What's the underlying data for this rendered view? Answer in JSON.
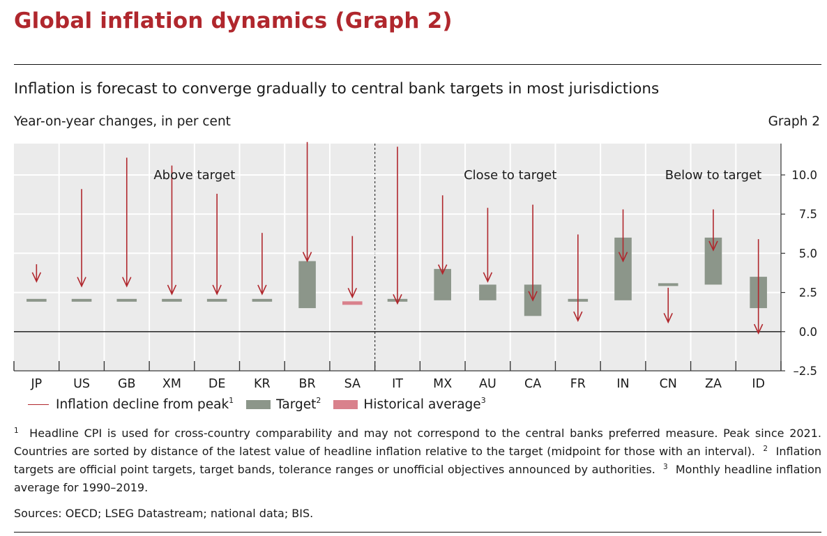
{
  "header": {
    "title": "Global inflation dynamics (Graph 2)"
  },
  "figure": {
    "subtitle": "Inflation is forecast to converge gradually to central bank targets in most jurisdictions",
    "units": "Year-on-year changes, in per cent",
    "graph_label": "Graph 2"
  },
  "legend": {
    "decline_label": "Inflation decline from peak",
    "decline_sup": "1",
    "target_label": "Target",
    "target_sup": "2",
    "historical_label": "Historical average",
    "historical_sup": "3"
  },
  "footnotes": {
    "n1": "1",
    "t1": "Headline CPI is used for cross-country comparability and may not correspond to the central banks preferred measure. Peak since 2021. Countries are sorted by distance of the latest value of headline inflation relative to the target (midpoint for those with an interval).",
    "n2": "2",
    "t2": "Inflation targets are official point targets, target bands, tolerance ranges or unofficial objectives announced by authorities.",
    "n3": "3",
    "t3": "Monthly headline inflation average for 1990–2019."
  },
  "sources": "Sources: OECD; LSEG Datastream; national data; BIS.",
  "colors": {
    "title_red": "#b0272d",
    "arrow_red": "#b0272d",
    "target_green": "#8c968a",
    "historical_pink": "#d9818c",
    "panel_bg": "#ebebeb"
  },
  "chart_data": {
    "type": "bar",
    "ylim": [
      -2.5,
      12.0
    ],
    "y_ticks": [
      {
        "v": 10.0,
        "label": "10.0"
      },
      {
        "v": 7.5,
        "label": "7.5"
      },
      {
        "v": 5.0,
        "label": "5.0"
      },
      {
        "v": 2.5,
        "label": "2.5"
      },
      {
        "v": 0.0,
        "label": "0.0"
      },
      {
        "v": -2.5,
        "label": "–2.5"
      }
    ],
    "groups": [
      {
        "label": "Above target",
        "start": 0,
        "end": 7
      },
      {
        "label": "Close to target",
        "start": 8,
        "end": 13
      },
      {
        "label": "Below to target",
        "start": 14,
        "end": 16
      }
    ],
    "categories": [
      "JP",
      "US",
      "GB",
      "XM",
      "DE",
      "KR",
      "BR",
      "SA",
      "IT",
      "MX",
      "AU",
      "CA",
      "FR",
      "IN",
      "CN",
      "ZA",
      "ID"
    ],
    "peak": [
      4.3,
      9.1,
      11.1,
      10.6,
      8.8,
      6.3,
      12.1,
      6.1,
      11.8,
      8.7,
      7.9,
      8.1,
      6.2,
      7.8,
      2.8,
      7.8,
      5.9
    ],
    "latest": [
      3.2,
      2.9,
      2.9,
      2.4,
      2.4,
      2.4,
      4.5,
      2.2,
      1.8,
      3.7,
      3.2,
      2.0,
      0.7,
      4.5,
      0.6,
      5.2,
      -0.1
    ],
    "target_low": [
      2.0,
      2.0,
      2.0,
      2.0,
      2.0,
      2.0,
      1.5,
      1.8,
      2.0,
      2.0,
      2.0,
      1.0,
      2.0,
      2.0,
      3.0,
      3.0,
      1.5
    ],
    "target_high": [
      2.0,
      2.0,
      2.0,
      2.0,
      2.0,
      2.0,
      4.5,
      1.8,
      2.0,
      4.0,
      3.0,
      3.0,
      2.0,
      6.0,
      3.0,
      6.0,
      3.5
    ],
    "target_kind": [
      "point",
      "point",
      "point",
      "point",
      "point",
      "point",
      "band",
      "historical",
      "point",
      "band",
      "band",
      "band",
      "point",
      "band",
      "point",
      "band",
      "band"
    ]
  }
}
